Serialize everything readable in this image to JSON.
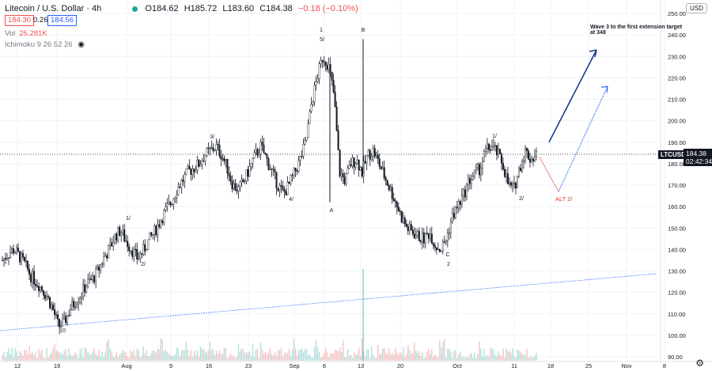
{
  "header": {
    "symbol_title": "Litecoin / U.S. Dollar · 4h",
    "open_label": "O",
    "open": "184.62",
    "high_label": "H",
    "high": "185.72",
    "low_label": "L",
    "low": "183.60",
    "close_label": "C",
    "close": "184.38",
    "change": "−0.18 (−0.10%)"
  },
  "bid": "184.30",
  "spread": "0.26",
  "ask": "184.56",
  "volume": {
    "label": "Vol",
    "value": "25.281K"
  },
  "ichimoku": {
    "label": "Ichimoku 9 26 52 26"
  },
  "currency_button": "USD",
  "symbol_tag": "LTCUSD",
  "price_tag": {
    "price": "184.38",
    "countdown": "02:42:34"
  },
  "colors": {
    "up": "#26a69a",
    "down": "#ef5350",
    "candle": "#131722",
    "blue": "#2962ff",
    "navy": "#1a3d8f",
    "red_dotted": "#e53935",
    "grid": "#f0f3fa"
  },
  "chart_data": {
    "type": "line",
    "series": [
      {
        "values": [
          135,
          138,
          140,
          137,
          133,
          128,
          125,
          122,
          118,
          112,
          104,
          106,
          112,
          116,
          119,
          124,
          126,
          130,
          136,
          140,
          146,
          149,
          144,
          140,
          136,
          139,
          144,
          148,
          153,
          158,
          162,
          168,
          172,
          176,
          178,
          180,
          184,
          186,
          188,
          184,
          178,
          170,
          168,
          172,
          178,
          184,
          188,
          182,
          176,
          170,
          166,
          170,
          176,
          182,
          190,
          208,
          220,
          230,
          226,
          212,
          176,
          172,
          180,
          182,
          176,
          184,
          186,
          180,
          174,
          168,
          162,
          155,
          150,
          148,
          146,
          145,
          148,
          142,
          140,
          145,
          155,
          160,
          165,
          172,
          175,
          178,
          186,
          188,
          185,
          180,
          170,
          168,
          178,
          186,
          182,
          184
        ]
      }
    ],
    "ylim": [
      90,
      250
    ],
    "y_ticks": [
      "90.00",
      "100.00",
      "110.00",
      "120.00",
      "130.00",
      "140.00",
      "150.00",
      "160.00",
      "170.00",
      "180.00",
      "190.00",
      "200.00",
      "210.00",
      "220.00",
      "230.00",
      "240.00",
      "250.00"
    ],
    "x_ticks": [
      "12",
      "19",
      "Aug",
      "9",
      "16",
      "23",
      "Sep",
      "6",
      "13",
      "20",
      "Oct",
      "11",
      "18",
      "25",
      "Nov",
      "8"
    ],
    "wave_labels": [
      "0",
      "1/",
      "2/",
      "3/",
      "4/",
      "1",
      "5/",
      "A",
      "B",
      "C",
      "2",
      "1/",
      "2/"
    ],
    "projection_label": "ALT 2/",
    "annotation": "Wave 3 to the first extension target at 348",
    "current_price": 184.38,
    "grid": true
  }
}
